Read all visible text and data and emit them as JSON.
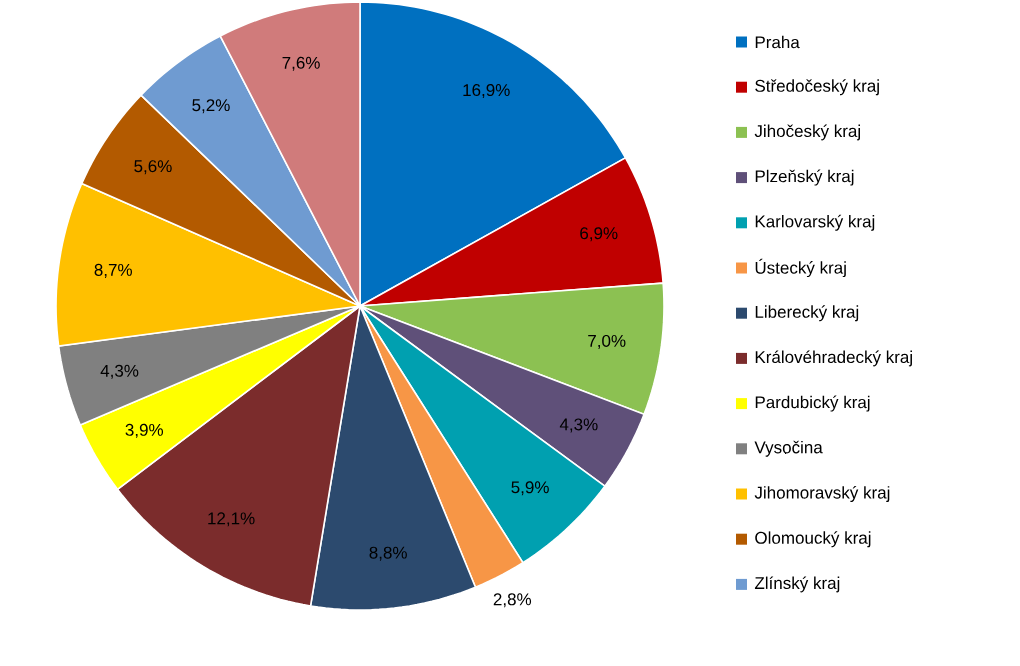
{
  "chart_data": {
    "type": "pie",
    "categories": [
      "Praha",
      "Středočeský kraj",
      "Jihočeský kraj",
      "Plzeňský kraj",
      "Karlovarský kraj",
      "Ústecký kraj",
      "Liberecký kraj",
      "Královéhradecký kraj",
      "Pardubický kraj",
      "Vysočina",
      "Jihomoravský kraj",
      "Olomoucký kraj",
      "Zlínský kraj",
      null
    ],
    "values": [
      16.9,
      6.9,
      7.0,
      4.3,
      5.9,
      2.8,
      8.8,
      12.1,
      3.9,
      4.3,
      8.7,
      5.6,
      5.2,
      7.6
    ],
    "value_labels": [
      "16,9%",
      "6,9%",
      "7,0%",
      "4,3%",
      "5,9%",
      "2,8%",
      "8,8%",
      "12,1%",
      "3,9%",
      "4,3%",
      "8,7%",
      "5,6%",
      "5,2%",
      "7,6%"
    ],
    "colors": [
      "#0070c0",
      "#c00000",
      "#8cc152",
      "#5f5079",
      "#00a0b0",
      "#f79646",
      "#2c4a6e",
      "#7b2c2c",
      "#ffff00",
      "#808080",
      "#ffc000",
      "#b35a00",
      "#6f9bd1",
      "#d07b7b"
    ],
    "legend": "right"
  }
}
